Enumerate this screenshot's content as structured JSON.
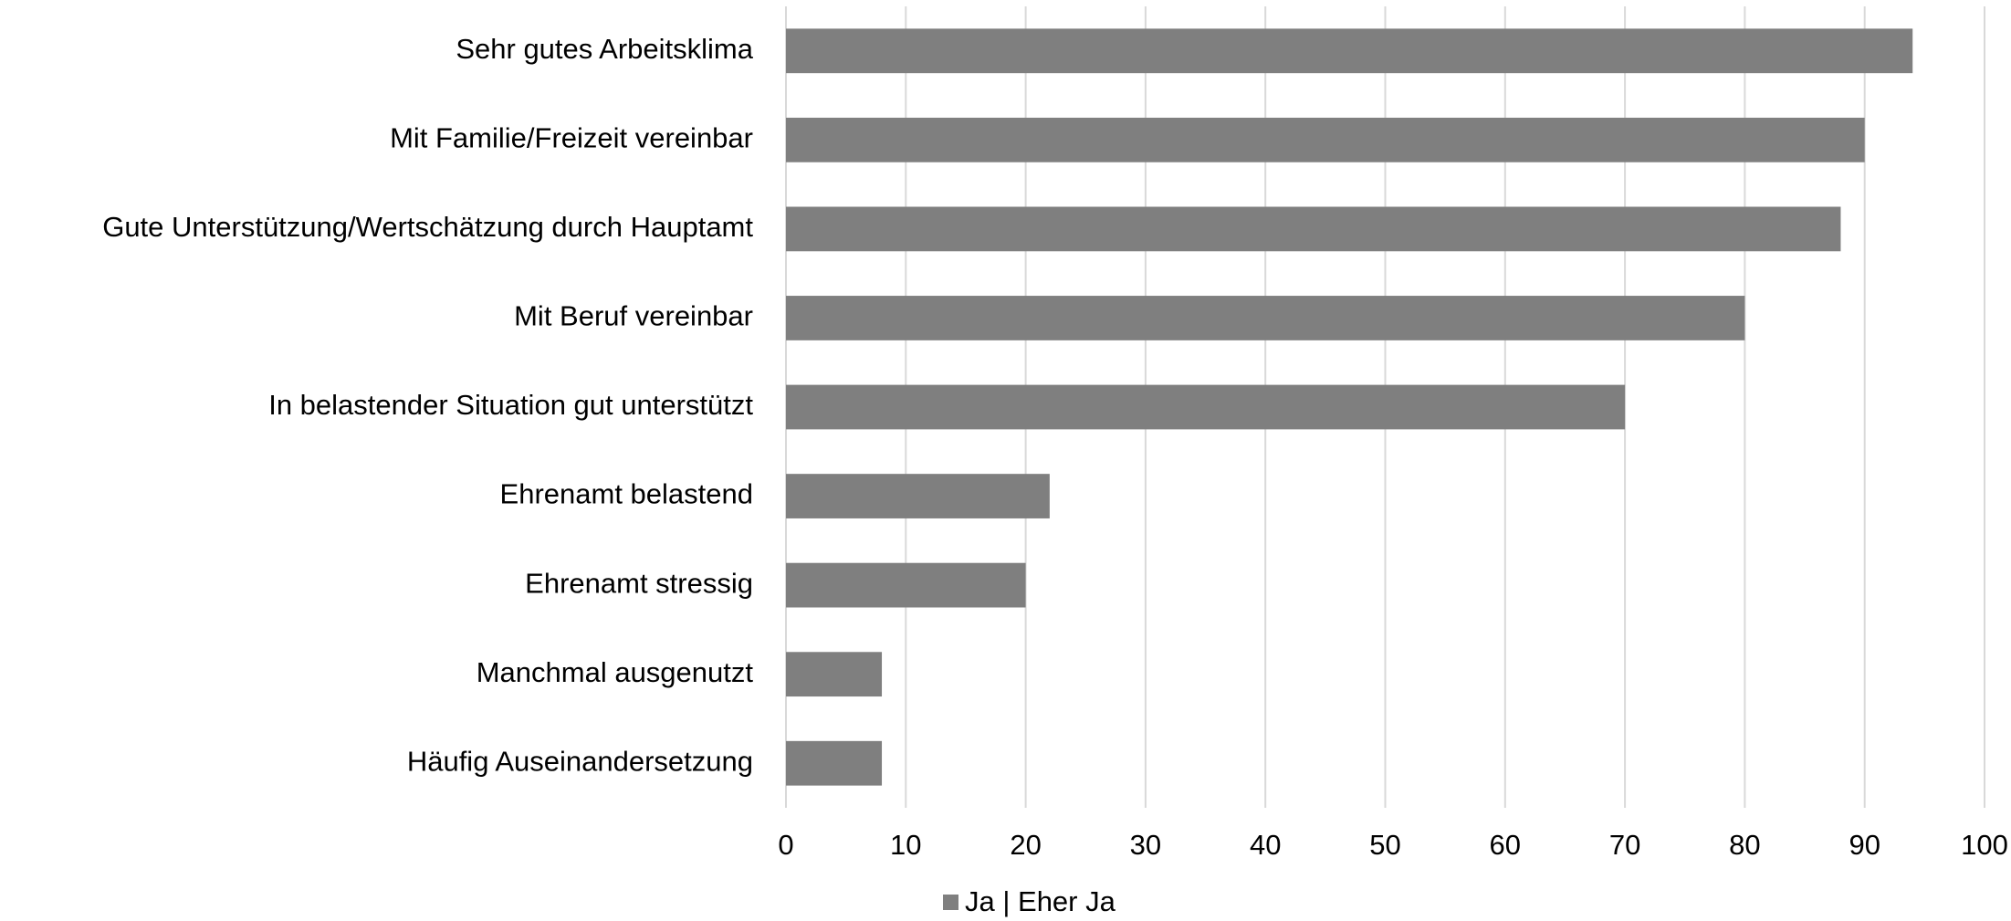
{
  "chart_data": {
    "type": "bar",
    "orientation": "horizontal",
    "categories": [
      "Sehr gutes Arbeitsklima",
      "Mit Familie/Freizeit vereinbar",
      "Gute Unterstützung/Wertschätzung durch Hauptamt",
      "Mit Beruf vereinbar",
      "In belastender Situation gut unterstützt",
      "Ehrenamt belastend",
      "Ehrenamt stressig",
      "Manchmal ausgenutzt",
      "Häufig Auseinandersetzung"
    ],
    "series": [
      {
        "name": "Ja | Eher Ja",
        "color": "#7f7f7f",
        "values": [
          94,
          90,
          88,
          80,
          70,
          22,
          20,
          8,
          8
        ]
      }
    ],
    "xlim": [
      0,
      100
    ],
    "xticks": [
      0,
      10,
      20,
      30,
      40,
      50,
      60,
      70,
      80,
      90,
      100
    ],
    "grid": true,
    "legend": "bottom"
  }
}
